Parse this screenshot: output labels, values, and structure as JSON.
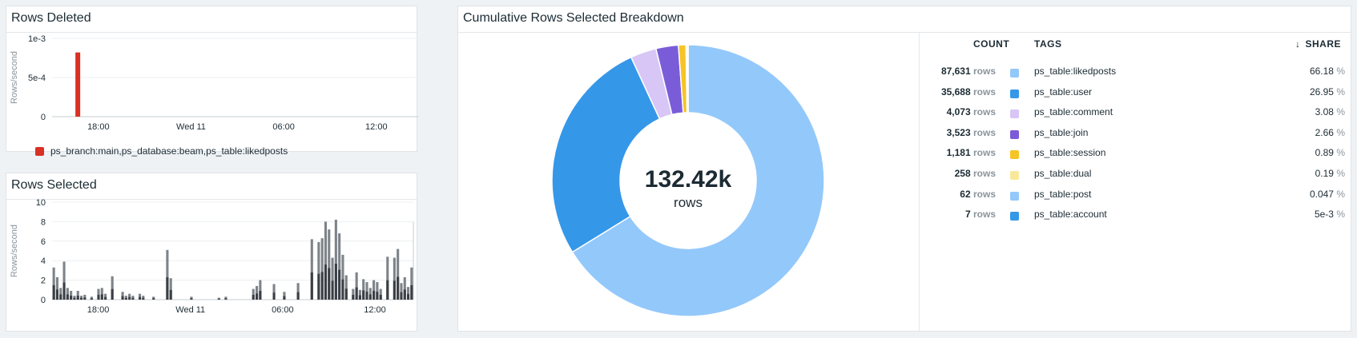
{
  "panels": {
    "rows_deleted": {
      "title": "Rows Deleted",
      "ylabel": "Rows/second",
      "yticks": [
        "1e-3",
        "5e-4",
        "0"
      ],
      "xticks": [
        "18:00",
        "Wed 11",
        "06:00",
        "12:00"
      ],
      "legend": "ps_branch:main,ps_database:beam,ps_table:likedposts",
      "legend_color": "#d93025"
    },
    "rows_selected": {
      "title": "Rows Selected",
      "ylabel": "Rows/second",
      "yticks": [
        "10",
        "8",
        "6",
        "4",
        "2",
        "0"
      ],
      "xticks": [
        "18:00",
        "Wed 11",
        "06:00",
        "12:00"
      ]
    },
    "breakdown": {
      "title": "Cumulative Rows Selected Breakdown",
      "center_value": "132.42k",
      "center_unit": "rows",
      "head_count": "COUNT",
      "head_tags": "TAGS",
      "head_share": "SHARE",
      "sort_arrow": "↓"
    }
  },
  "table": [
    {
      "count": "87,631",
      "unit": "rows",
      "tag": "ps_table:likedposts",
      "share": "66.18",
      "pct": "%",
      "color": "#93c8fb"
    },
    {
      "count": "35,688",
      "unit": "rows",
      "tag": "ps_table:user",
      "share": "26.95",
      "pct": "%",
      "color": "#3597e8"
    },
    {
      "count": "4,073",
      "unit": "rows",
      "tag": "ps_table:comment",
      "share": "3.08",
      "pct": "%",
      "color": "#d8c6f6"
    },
    {
      "count": "3,523",
      "unit": "rows",
      "tag": "ps_table:join",
      "share": "2.66",
      "pct": "%",
      "color": "#7b5cd8"
    },
    {
      "count": "1,181",
      "unit": "rows",
      "tag": "ps_table:session",
      "share": "0.89",
      "pct": "%",
      "color": "#f6c426"
    },
    {
      "count": "258",
      "unit": "rows",
      "tag": "ps_table:dual",
      "share": "0.19",
      "pct": "%",
      "color": "#f8e99a"
    },
    {
      "count": "62",
      "unit": "rows",
      "tag": "ps_table:post",
      "share": "0.047",
      "pct": "%",
      "color": "#93c8fb"
    },
    {
      "count": "7",
      "unit": "rows",
      "tag": "ps_table:account",
      "share": "5e-3",
      "pct": "%",
      "color": "#3597e8"
    }
  ],
  "chart_data": [
    {
      "type": "bar",
      "title": "Rows Deleted",
      "xlabel": "",
      "ylabel": "Rows/second",
      "ylim": [
        0,
        0.001
      ],
      "series": [
        {
          "name": "ps_branch:main,ps_database:beam,ps_table:likedposts",
          "points": [
            {
              "x": "16:40",
              "y": 0.00082
            }
          ]
        }
      ],
      "x_ticks": [
        "18:00",
        "Wed 11",
        "06:00",
        "12:00"
      ],
      "grid": true
    },
    {
      "type": "bar",
      "title": "Rows Selected",
      "xlabel": "",
      "ylabel": "Rows/second",
      "ylim": [
        0,
        10
      ],
      "stacked": true,
      "x_ticks": [
        "18:00",
        "Wed 11",
        "06:00",
        "12:00"
      ],
      "totals": [
        3.3,
        2.3,
        1.2,
        3.9,
        1.2,
        0.9,
        0.4,
        0.9,
        0.4,
        0.5,
        0,
        0.3,
        0,
        1.1,
        1.2,
        0.6,
        0,
        2.4,
        0,
        0,
        0.8,
        0.4,
        0.6,
        0.4,
        0,
        0.6,
        0.4,
        0,
        0,
        0.3,
        0,
        0,
        0,
        5.1,
        2.2,
        0,
        0,
        0,
        0,
        0,
        0.3,
        0,
        0,
        0,
        0,
        0,
        0,
        0,
        0.2,
        0,
        0.3,
        0,
        0,
        0,
        0,
        0,
        0,
        0,
        1.1,
        1.4,
        2.0,
        0,
        0,
        0,
        1.6,
        0,
        0,
        0.8,
        0,
        0,
        0,
        1.7,
        0,
        0,
        0,
        6.2,
        0,
        5.9,
        6.3,
        8.0,
        7.2,
        4.3,
        8.2,
        6.8,
        4.6,
        2.5,
        0,
        1.1,
        2.8,
        1.0,
        2.1,
        1.8,
        1.2,
        2.0,
        1.8,
        1.1,
        0,
        4.4,
        0,
        4.3,
        5.2,
        1.7,
        2.3,
        1.3,
        3.3
      ],
      "dark_fraction": 0.45,
      "grid": true
    },
    {
      "type": "pie",
      "title": "Cumulative Rows Selected Breakdown",
      "donut": true,
      "center_label": "132.42k rows",
      "categories": [
        "ps_table:likedposts",
        "ps_table:user",
        "ps_table:comment",
        "ps_table:join",
        "ps_table:session",
        "ps_table:dual",
        "ps_table:post",
        "ps_table:account"
      ],
      "values": [
        87631,
        35688,
        4073,
        3523,
        1181,
        258,
        62,
        7
      ],
      "shares": [
        66.18,
        26.95,
        3.08,
        2.66,
        0.89,
        0.19,
        0.047,
        0.005
      ]
    }
  ]
}
